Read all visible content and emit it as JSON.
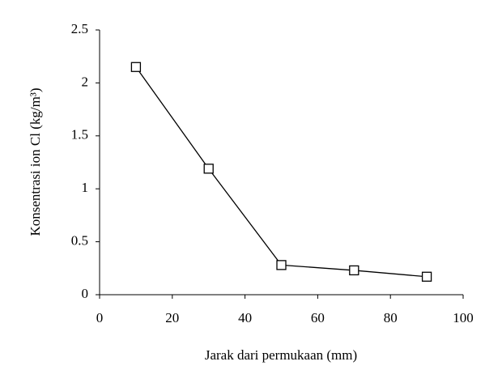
{
  "chart_data": {
    "type": "line",
    "x_label": "Jarak dari permukaan (mm)",
    "y_label": "Konsentrasi ion Cl (kg/m³)",
    "x": [
      10,
      30,
      50,
      70,
      90
    ],
    "series": [
      {
        "color": "#000000",
        "values": [
          2.15,
          1.19,
          0.28,
          0.23,
          0.17
        ]
      }
    ],
    "xlim": [
      0,
      100
    ],
    "xticks": [
      0,
      20,
      40,
      60,
      80,
      100
    ],
    "ylim": [
      0,
      2.5
    ],
    "yticks": [
      0,
      0.5,
      1,
      1.5,
      2,
      2.5
    ],
    "grid": false,
    "marker": "square"
  }
}
